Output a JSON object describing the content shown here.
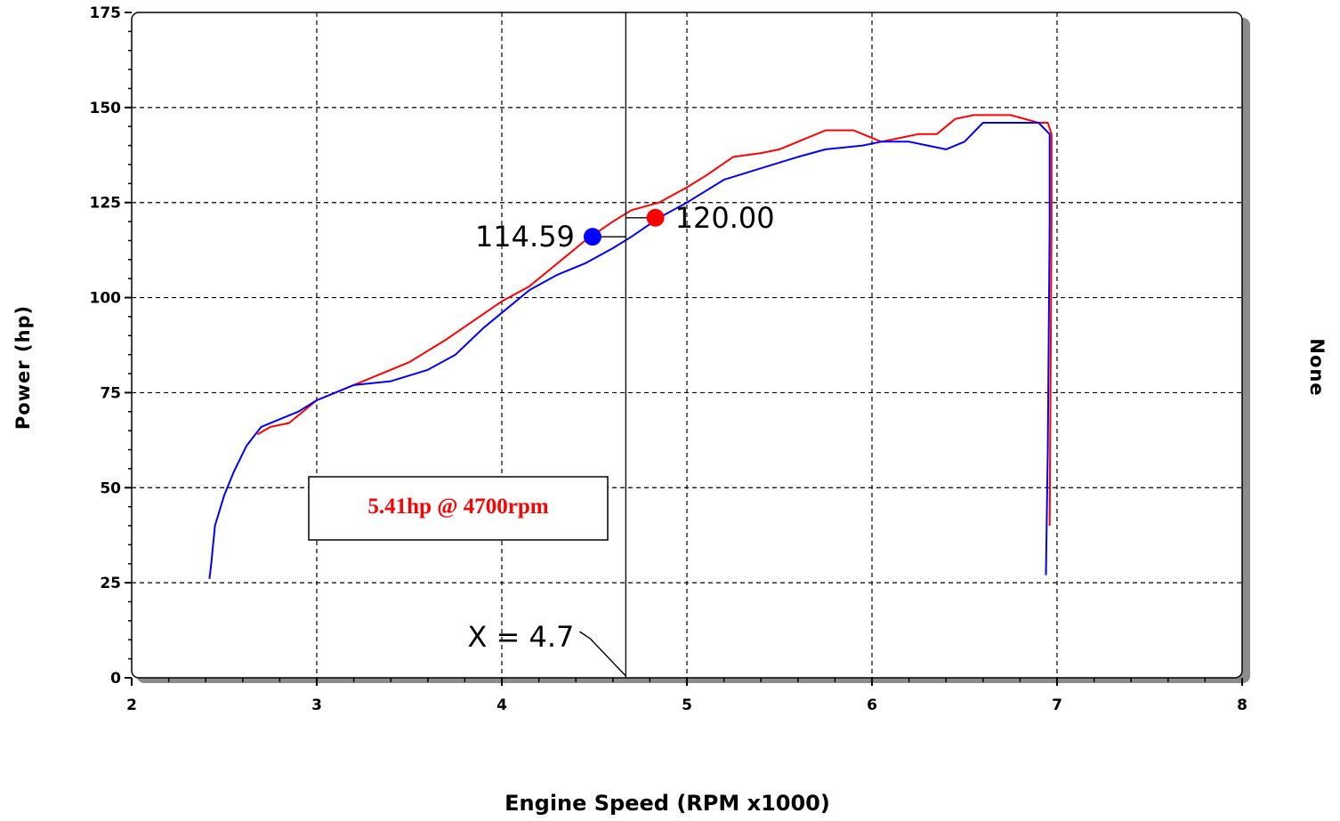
{
  "chart_data": {
    "type": "line",
    "title": "",
    "xlabel": "Engine Speed (RPM x1000)",
    "ylabel": "Power (hp)",
    "right_label": "None",
    "xlim": [
      2,
      8
    ],
    "ylim": [
      0,
      175
    ],
    "x_ticks": [
      "2",
      "3",
      "4",
      "5",
      "6",
      "7",
      "8"
    ],
    "y_ticks": [
      "0",
      "25",
      "50",
      "75",
      "100",
      "125",
      "150",
      "175"
    ],
    "grid": true,
    "colors": {
      "series_red": "#ff0000",
      "series_blue": "#0000ff"
    },
    "series": [
      {
        "color": "#ff0000",
        "x": [
          2.68,
          2.75,
          2.85,
          3.0,
          3.1,
          3.3,
          3.5,
          3.7,
          3.85,
          4.0,
          4.15,
          4.3,
          4.45,
          4.6,
          4.7,
          4.85,
          5.0,
          5.1,
          5.25,
          5.4,
          5.5,
          5.6,
          5.75,
          5.9,
          6.0,
          6.05,
          6.15,
          6.25,
          6.35,
          6.45,
          6.55,
          6.75,
          6.9,
          6.95,
          6.97,
          6.97,
          6.96
        ],
        "y": [
          64,
          66,
          67,
          73,
          75,
          79,
          83,
          89,
          94,
          99,
          103,
          109,
          115,
          120,
          123,
          125,
          129,
          132,
          137,
          138,
          139,
          141,
          144,
          144,
          142,
          141,
          142,
          143,
          143,
          147,
          148,
          148,
          146,
          146,
          143,
          120,
          40
        ]
      },
      {
        "color": "#0000ff",
        "x": [
          2.42,
          2.43,
          2.45,
          2.5,
          2.55,
          2.62,
          2.7,
          2.8,
          2.9,
          3.0,
          3.2,
          3.4,
          3.6,
          3.75,
          3.9,
          4.0,
          4.15,
          4.3,
          4.45,
          4.6,
          4.7,
          4.85,
          5.0,
          5.2,
          5.4,
          5.6,
          5.75,
          5.95,
          6.05,
          6.2,
          6.3,
          6.4,
          6.5,
          6.6,
          6.75,
          6.9,
          6.96,
          6.96,
          6.95,
          6.94
        ],
        "y": [
          26,
          30,
          40,
          48,
          54,
          61,
          66,
          68,
          70,
          73,
          77,
          78,
          81,
          85,
          92,
          96,
          102,
          106,
          109,
          113,
          116,
          121,
          125,
          131,
          134,
          137,
          139,
          140,
          141,
          141,
          140,
          139,
          141,
          146,
          146,
          146,
          143,
          120,
          60,
          27
        ]
      }
    ],
    "markers": [
      {
        "label": "114.59",
        "x": 4.49,
        "y": 116,
        "color": "#0000ff"
      },
      {
        "label": "120.00",
        "x": 4.83,
        "y": 121,
        "color": "#ff0000"
      }
    ],
    "cursor": {
      "x": 4.67,
      "label": "X = 4.7"
    },
    "note": "5.41hp @ 4700rpm"
  }
}
